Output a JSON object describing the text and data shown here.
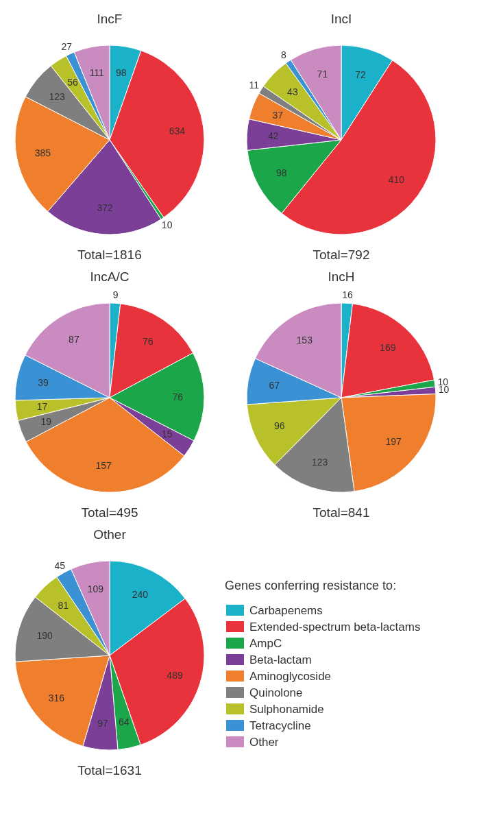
{
  "chart_data": [
    {
      "type": "pie",
      "title": "IncF",
      "categories": [
        null,
        null,
        null,
        null,
        null,
        null,
        null,
        null,
        null
      ],
      "values": [
        98,
        634,
        10,
        372,
        385,
        123,
        56,
        27,
        111
      ],
      "colors": [
        "#1ab1c9",
        "#e8323c",
        "#1ca64a",
        "#7b3f98",
        "#f07f2d",
        "#7f7f80",
        "#b8c12a",
        "#3a91d4",
        "#c98bc0"
      ],
      "data_labels": true,
      "annotations": [
        "Total=1816"
      ]
    },
    {
      "type": "pie",
      "title": "IncI",
      "categories": [
        null,
        null,
        null,
        null,
        null,
        null,
        null,
        null,
        null
      ],
      "values": [
        72,
        410,
        98,
        42,
        37,
        11,
        43,
        8,
        71
      ],
      "colors": [
        "#1ab1c9",
        "#e8323c",
        "#1ca64a",
        "#7b3f98",
        "#f07f2d",
        "#7f7f80",
        "#b8c12a",
        "#3a91d4",
        "#c98bc0"
      ],
      "data_labels": true,
      "annotations": [
        "Total=792"
      ]
    },
    {
      "type": "pie",
      "title": "IncA/C",
      "categories": [
        null,
        null,
        null,
        null,
        null,
        null,
        null,
        null,
        null
      ],
      "values": [
        9,
        76,
        76,
        15,
        157,
        19,
        17,
        39,
        87
      ],
      "colors": [
        "#1ab1c9",
        "#e8323c",
        "#1ca64a",
        "#7b3f98",
        "#f07f2d",
        "#7f7f80",
        "#b8c12a",
        "#3a91d4",
        "#c98bc0"
      ],
      "data_labels": true,
      "annotations": [
        "Total=495"
      ]
    },
    {
      "type": "pie",
      "title": "IncH",
      "categories": [
        null,
        null,
        null,
        null,
        null,
        null,
        null,
        null,
        null
      ],
      "values": [
        16,
        169,
        10,
        10,
        197,
        123,
        96,
        67,
        153
      ],
      "colors": [
        "#1ab1c9",
        "#e8323c",
        "#1ca64a",
        "#7b3f98",
        "#f07f2d",
        "#7f7f80",
        "#b8c12a",
        "#3a91d4",
        "#c98bc0"
      ],
      "data_labels": true,
      "annotations": [
        "Total=841"
      ]
    },
    {
      "type": "pie",
      "title": "Other",
      "categories": [
        "Carbapenems",
        "Extended-spectrum beta-lactams",
        "AmpC",
        "Beta-lactam",
        "Aminoglycoside",
        "Quinolone",
        "Sulphonamide",
        "Tetracycline",
        "Other"
      ],
      "values": [
        240,
        489,
        64,
        97,
        316,
        190,
        81,
        45,
        109
      ],
      "colors": [
        "#1ab1c9",
        "#e8323c",
        "#1ca64a",
        "#7b3f98",
        "#f07f2d",
        "#7f7f80",
        "#b8c12a",
        "#3a91d4",
        "#c98bc0"
      ],
      "data_labels": true,
      "annotations": [
        "Total=1631"
      ],
      "legend": "right",
      "legend_title": "Genes conferring resistance to:"
    }
  ]
}
